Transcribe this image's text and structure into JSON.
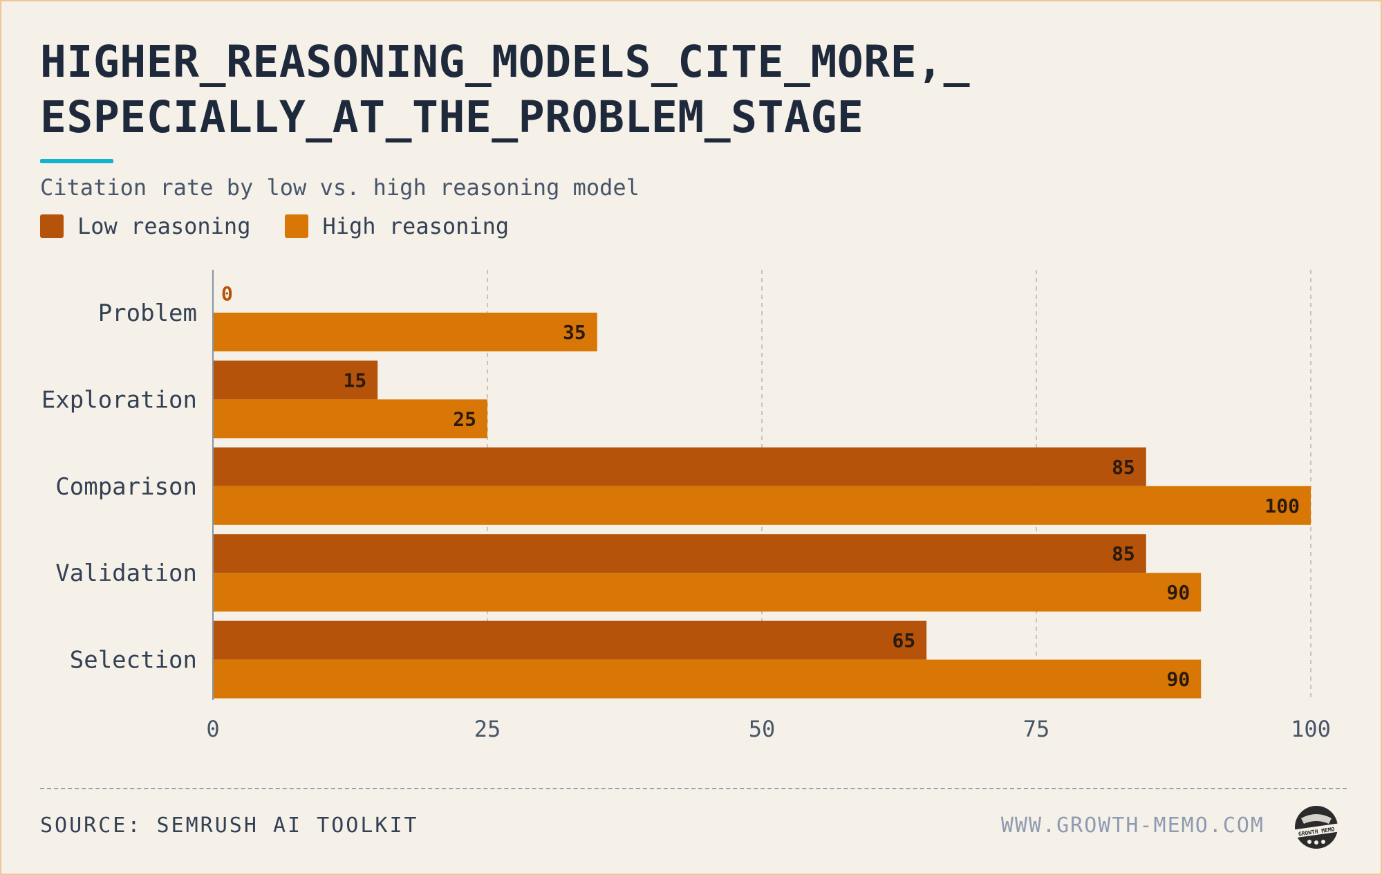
{
  "header": {
    "title_line1": "HIGHER_REASONING_MODELS_CITE_MORE,_",
    "title_line2": "ESPECIALLY_AT_THE_PROBLEM_STAGE",
    "subtitle": "Citation rate by low vs. high reasoning model"
  },
  "footer": {
    "source": "SOURCE: SEMRUSH AI TOOLKIT",
    "site": "WWW.GROWTH-MEMO.COM",
    "logo_text": "GROWTH MEMO"
  },
  "colors": {
    "background": "#f5f0e8",
    "low": "#b5530a",
    "high": "#d97706",
    "accent": "#12b3cf",
    "title": "#1e293b"
  },
  "chart_data": {
    "type": "bar",
    "orientation": "horizontal",
    "categories": [
      "Problem",
      "Exploration",
      "Comparison",
      "Validation",
      "Selection"
    ],
    "series": [
      {
        "name": "Low reasoning",
        "values": [
          0,
          15,
          85,
          85,
          65
        ],
        "color": "#b5530a"
      },
      {
        "name": "High reasoning",
        "values": [
          35,
          25,
          100,
          90,
          90
        ],
        "color": "#d97706"
      }
    ],
    "xlim": [
      0,
      100
    ],
    "xticks": [
      0,
      25,
      50,
      75,
      100
    ],
    "grid": "vertical-dashed",
    "legend_position": "top-left"
  }
}
